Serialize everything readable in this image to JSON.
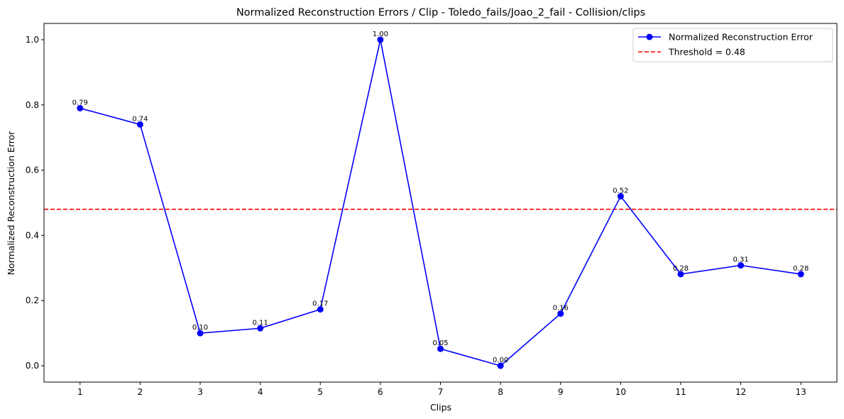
{
  "chart_data": {
    "type": "line",
    "title": "Normalized Reconstruction Errors / Clip - Toledo_fails/Joao_2_fail - Collision/clips",
    "xlabel": "Clips",
    "ylabel": "Normalized Reconstruction Error",
    "x": [
      1,
      2,
      3,
      4,
      5,
      6,
      7,
      8,
      9,
      10,
      11,
      12,
      13
    ],
    "x_tick_labels": [
      "1",
      "2",
      "3",
      "4",
      "5",
      "6",
      "7",
      "8",
      "9",
      "10",
      "11",
      "12",
      "13"
    ],
    "y_ticks": [
      0.0,
      0.2,
      0.4,
      0.6,
      0.8,
      1.0
    ],
    "y_tick_labels": [
      "0.0",
      "0.2",
      "0.4",
      "0.6",
      "0.8",
      "1.0"
    ],
    "ylim": [
      -0.05,
      1.05
    ],
    "xlim": [
      0.4,
      13.6
    ],
    "series": [
      {
        "name": "Normalized Reconstruction Error",
        "color": "#0000ff",
        "marker": "circle",
        "values": [
          0.79,
          0.74,
          0.1,
          0.115,
          0.173,
          1.0,
          0.052,
          0.0,
          0.16,
          0.52,
          0.281,
          0.308,
          0.281
        ],
        "labels": [
          "0.79",
          "0.74",
          "0.10",
          "0.11",
          "0.17",
          "1.00",
          "0.05",
          "0.00",
          "0.16",
          "0.52",
          "0.28",
          "0.31",
          "0.28"
        ]
      }
    ],
    "threshold": {
      "value": 0.48,
      "label": "Threshold = 0.48",
      "color": "#ff0000",
      "style": "dashed"
    },
    "legend_placement": "top-right",
    "grid": false
  }
}
